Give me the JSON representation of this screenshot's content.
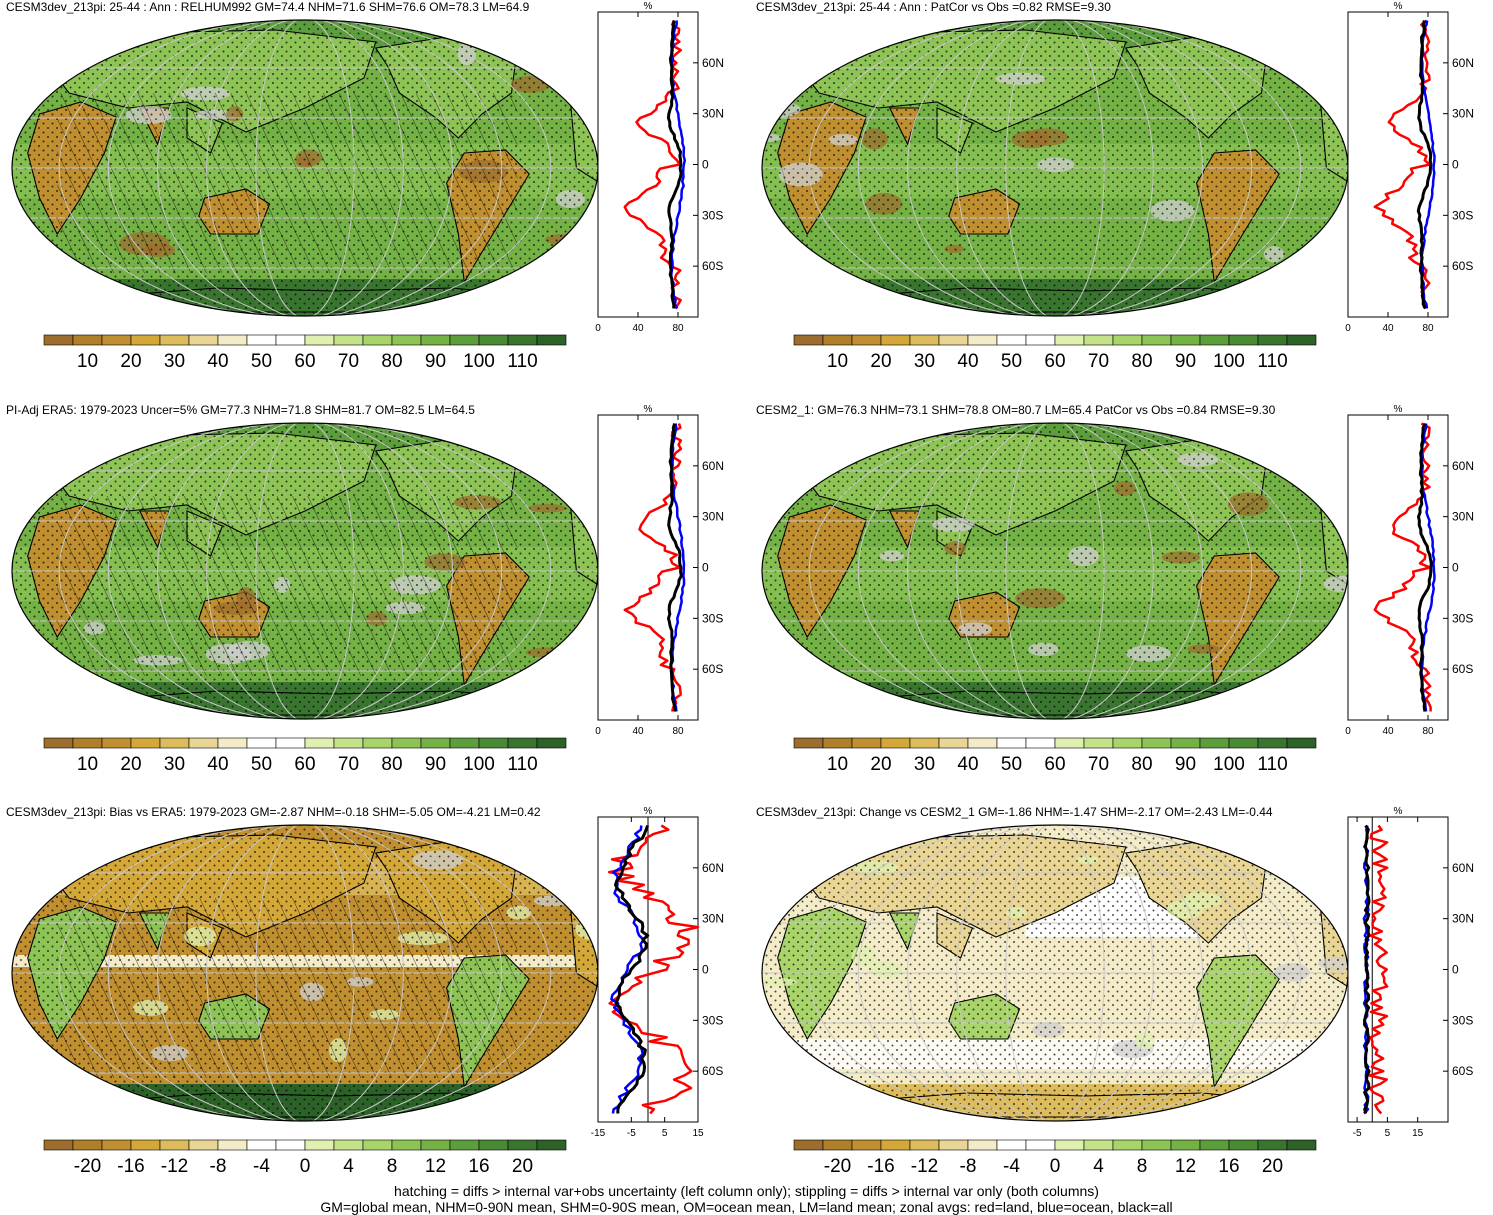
{
  "panels": [
    {
      "title": "CESM3dev_213pi: 25-44 : Ann : RELHUM992 GM=74.4 NHM=71.6 SHM=76.6 OM=78.3 LM=64.9",
      "map_style": "abs",
      "overlay": "hatch+stipple",
      "zonal": {
        "unit": "%",
        "xticks": [
          "0",
          "40",
          "80"
        ],
        "xmin": 0,
        "xmax": 100,
        "zero_line": false
      },
      "colorbar": [
        "10",
        "20",
        "30",
        "40",
        "50",
        "60",
        "70",
        "80",
        "90",
        "100",
        "110"
      ]
    },
    {
      "title": "CESM3dev_213pi: 25-44 : Ann : PatCor vs Obs =0.82 RMSE=9.30",
      "map_style": "abs",
      "overlay": "stipple",
      "zonal": {
        "unit": "%",
        "xticks": [
          "0",
          "40",
          "80"
        ],
        "xmin": 0,
        "xmax": 100,
        "zero_line": false
      },
      "colorbar": [
        "10",
        "20",
        "30",
        "40",
        "50",
        "60",
        "70",
        "80",
        "90",
        "100",
        "110"
      ]
    },
    {
      "title": "PI-Adj ERA5: 1979-2023 Uncer=5% GM=77.3 NHM=71.8 SHM=81.7 OM=82.5 LM=64.5",
      "map_style": "abs",
      "overlay": "hatch+stipple",
      "zonal": {
        "unit": "%",
        "xticks": [
          "0",
          "40",
          "80"
        ],
        "xmin": 0,
        "xmax": 100,
        "zero_line": false
      },
      "colorbar": [
        "10",
        "20",
        "30",
        "40",
        "50",
        "60",
        "70",
        "80",
        "90",
        "100",
        "110"
      ]
    },
    {
      "title": "CESM2_1: GM=76.3 NHM=73.1 SHM=78.8 OM=80.7 LM=65.4 PatCor vs Obs =0.84 RMSE=9.30",
      "map_style": "abs",
      "overlay": "stipple",
      "zonal": {
        "unit": "%",
        "xticks": [
          "0",
          "40",
          "80"
        ],
        "xmin": 0,
        "xmax": 100,
        "zero_line": false
      },
      "colorbar": [
        "10",
        "20",
        "30",
        "40",
        "50",
        "60",
        "70",
        "80",
        "90",
        "100",
        "110"
      ]
    },
    {
      "title": "CESM3dev_213pi: Bias vs ERA5: 1979-2023 GM=-2.87 NHM=-0.18 SHM=-5.05 OM=-4.21 LM=0.42",
      "map_style": "bias",
      "overlay": "hatch+stipple",
      "zonal": {
        "unit": "%",
        "xticks": [
          "-15",
          "-5",
          "5",
          "15"
        ],
        "xmin": -15,
        "xmax": 15,
        "zero_line": true
      },
      "colorbar": [
        "-20",
        "-16",
        "-12",
        "-8",
        "-4",
        "0",
        "4",
        "8",
        "12",
        "16",
        "20"
      ]
    },
    {
      "title": "CESM3dev_213pi: Change vs CESM2_1 GM=-1.86 NHM=-1.47 SHM=-2.17 OM=-2.43 LM=-0.44",
      "map_style": "change",
      "overlay": "stipple",
      "zonal": {
        "unit": "%",
        "xticks": [
          "-5",
          "5",
          "15"
        ],
        "xmin": -8,
        "xmax": 25,
        "zero_line": true
      },
      "colorbar": [
        "-20",
        "-16",
        "-12",
        "-8",
        "-4",
        "0",
        "4",
        "8",
        "12",
        "16",
        "20"
      ]
    }
  ],
  "zonal_lat_labels": [
    "60N",
    "30N",
    "0",
    "30S",
    "60S"
  ],
  "colorbar_colors": [
    "#9c6d2e",
    "#b07f2a",
    "#c08f30",
    "#d4a838",
    "#dcbc5c",
    "#e9d594",
    "#f4ecc8",
    "#ffffff",
    "#ffffff",
    "#dff0b0",
    "#c4e28a",
    "#a8d46a",
    "#8dc455",
    "#74b246",
    "#5d9e3c",
    "#4a8a35",
    "#3a7530",
    "#2c6128"
  ],
  "footnote": {
    "line1": "hatching = diffs > internal var+obs uncertainty (left column only); stippling = diffs > internal var only (both columns)",
    "line2": "GM=global mean, NHM=0-90N mean, SHM=0-90S mean, OM=ocean mean, LM=land mean; zonal avgs: red=land, blue=ocean, black=all"
  }
}
